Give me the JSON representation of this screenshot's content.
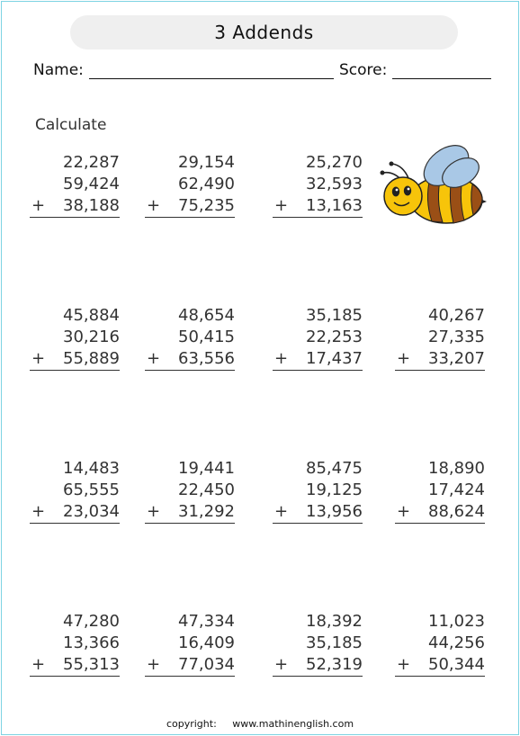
{
  "title": "3 Addends",
  "name_label": "Name:",
  "score_label": "Score:",
  "instruction": "Calculate",
  "operator": "+",
  "problems": [
    {
      "a": "22,287",
      "b": "59,424",
      "c": "38,188"
    },
    {
      "a": "29,154",
      "b": "62,490",
      "c": "75,235"
    },
    {
      "a": "25,270",
      "b": "32,593",
      "c": "13,163"
    },
    {
      "a": "45,884",
      "b": "30,216",
      "c": "55,889"
    },
    {
      "a": "48,654",
      "b": "50,415",
      "c": "63,556"
    },
    {
      "a": "35,185",
      "b": "22,253",
      "c": "17,437"
    },
    {
      "a": "40,267",
      "b": "27,335",
      "c": "33,207"
    },
    {
      "a": "14,483",
      "b": "65,555",
      "c": "23,034"
    },
    {
      "a": "19,441",
      "b": "22,450",
      "c": "31,292"
    },
    {
      "a": "85,475",
      "b": "19,125",
      "c": "13,956"
    },
    {
      "a": "18,890",
      "b": "17,424",
      "c": "88,624"
    },
    {
      "a": "47,280",
      "b": "13,366",
      "c": "55,313"
    },
    {
      "a": "47,334",
      "b": "16,409",
      "c": "77,034"
    },
    {
      "a": "18,392",
      "b": "35,185",
      "c": "52,319"
    },
    {
      "a": "11,023",
      "b": "44,256",
      "c": "50,344"
    }
  ],
  "footer": {
    "copyright_label": "copyright:",
    "website": "www.mathinenglish.com"
  },
  "colors": {
    "border": "#7ed3e3",
    "title_background": "#efefef",
    "bee_yellow": "#f7c40a",
    "bee_brown": "#9a4f16",
    "bee_wing": "#a9c8e6"
  },
  "icons": [
    "bee-illustration"
  ]
}
